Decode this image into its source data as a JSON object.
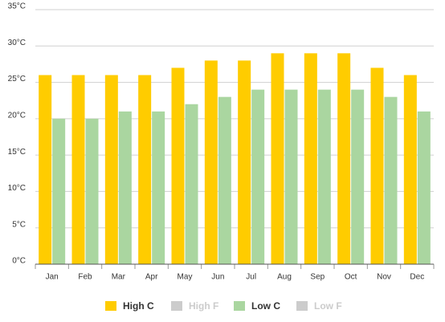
{
  "chart_data": {
    "type": "bar",
    "categories": [
      "Jan",
      "Feb",
      "Mar",
      "Apr",
      "May",
      "Jun",
      "Jul",
      "Aug",
      "Sep",
      "Oct",
      "Nov",
      "Dec"
    ],
    "series": [
      {
        "name": "High C",
        "color": "#ffcc00",
        "values": [
          26,
          26,
          26,
          26,
          27,
          28,
          28,
          29,
          29,
          29,
          27,
          26
        ]
      },
      {
        "name": "High F",
        "color": "#cccccc",
        "visible": false
      },
      {
        "name": "Low C",
        "color": "#aad6a0",
        "values": [
          20,
          20,
          21,
          21,
          22,
          23,
          24,
          24,
          24,
          24,
          23,
          21
        ]
      },
      {
        "name": "Low F",
        "color": "#cccccc",
        "visible": false
      }
    ],
    "ylim": [
      0,
      35
    ],
    "yticks": [
      {
        "value": 0,
        "label": "0°C"
      },
      {
        "value": 5,
        "label": "5°C"
      },
      {
        "value": 10,
        "label": "10°C"
      },
      {
        "value": 15,
        "label": "15°C"
      },
      {
        "value": 20,
        "label": "20°C"
      },
      {
        "value": 25,
        "label": "25°C"
      },
      {
        "value": 30,
        "label": "30°C"
      },
      {
        "value": 35,
        "label": "35°C"
      }
    ],
    "grid": true,
    "legend": "bottom"
  }
}
